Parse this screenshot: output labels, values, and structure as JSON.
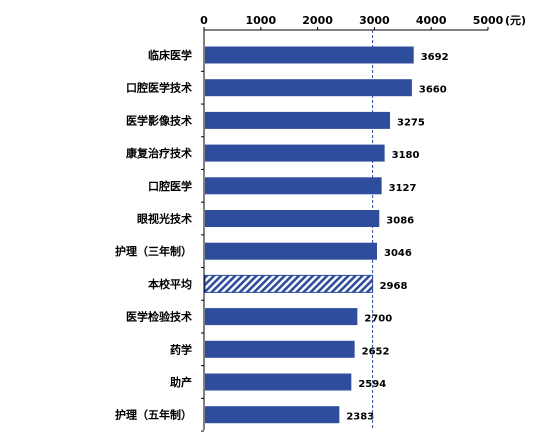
{
  "chart_data": {
    "type": "bar",
    "orientation": "horizontal",
    "unit_label": "(元)",
    "xlim": [
      0,
      5000
    ],
    "x_ticks": [
      "0",
      "1000",
      "2000",
      "3000",
      "4000",
      "5000"
    ],
    "categories": [
      "临床医学",
      "口腔医学技术",
      "医学影像技术",
      "康复治疗技术",
      "口腔医学",
      "眼视光技术",
      "护理（三年制）",
      "本校平均",
      "医学检验技术",
      "药学",
      "助产",
      "护理（五年制）"
    ],
    "values": [
      3692,
      3660,
      3275,
      3180,
      3127,
      3086,
      3046,
      2968,
      2700,
      2652,
      2594,
      2383
    ],
    "value_labels": [
      "3692",
      "3660",
      "3275",
      "3180",
      "3127",
      "3086",
      "3046",
      "2968",
      "2700",
      "2652",
      "2594",
      "2383"
    ],
    "highlight_category": "本校平均",
    "reference_line_value": 2968,
    "bar_color": "#2E4D9C",
    "highlight_color": "#2E4D9C",
    "grid": false,
    "legend": "none"
  }
}
